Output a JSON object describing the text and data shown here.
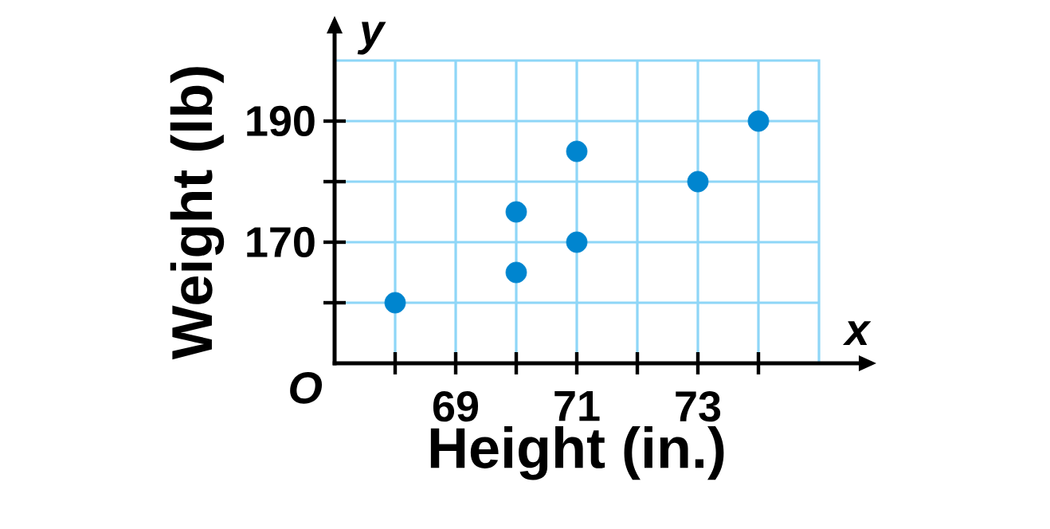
{
  "chart_data": {
    "type": "scatter",
    "xlabel": "Height (in.)",
    "ylabel": "Weight (lb)",
    "x": [
      68,
      70,
      70,
      71,
      71,
      73,
      74
    ],
    "values": [
      160,
      165,
      175,
      170,
      185,
      180,
      190
    ],
    "color": "#0085cf",
    "marker": "circle",
    "grid": true,
    "xlim": [
      67,
      75
    ],
    "ylim": [
      150,
      200
    ],
    "xticks": [
      {
        "value": 68,
        "label": null
      },
      69,
      {
        "value": 70,
        "label": null
      },
      71,
      {
        "value": 72,
        "label": null
      },
      73,
      {
        "value": 74,
        "label": null
      }
    ],
    "yticks": [
      {
        "value": 160,
        "label": null
      },
      170,
      {
        "value": 180,
        "label": null
      },
      190
    ],
    "annotations": [
      "y",
      "x",
      "O"
    ]
  }
}
